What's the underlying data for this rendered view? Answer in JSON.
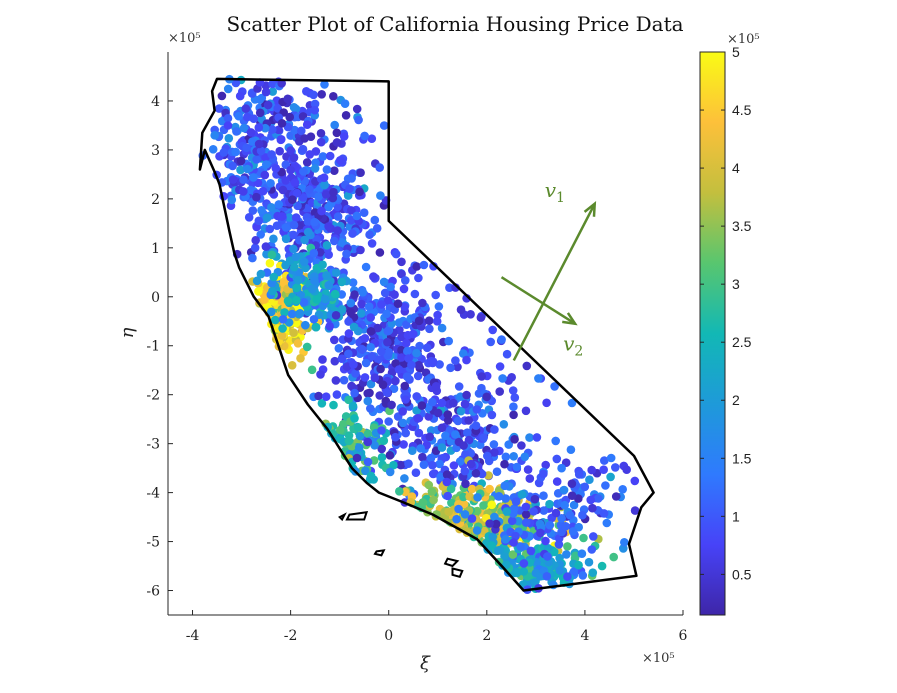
{
  "chart_data": {
    "type": "scatter",
    "title": "Scatter Plot of California Housing Price Data",
    "xlabel": "ξ",
    "ylabel": "η",
    "x_exponent": "×10⁵",
    "y_exponent": "×10⁵",
    "xlim": [
      -4.5,
      6
    ],
    "ylim": [
      -6.5,
      5
    ],
    "x_ticks": [
      -4,
      -2,
      0,
      2,
      4,
      6
    ],
    "y_ticks": [
      -6,
      -5,
      -4,
      -3,
      -2,
      -1,
      0,
      1,
      2,
      3,
      4
    ],
    "grid": false,
    "colorbar": {
      "colormap": "parula",
      "range": [
        0.15,
        5
      ],
      "ticks": [
        0.5,
        1,
        1.5,
        2,
        2.5,
        3,
        3.5,
        4,
        4.5,
        5
      ],
      "exponent": "×10⁵",
      "colors": [
        "#3e26a8",
        "#4743f8",
        "#2f7afe",
        "#1e9ad9",
        "#12b8b5",
        "#58c66f",
        "#c3bf3e",
        "#fdc03a",
        "#f9fb15"
      ]
    },
    "outline": [
      [
        -3.5,
        4.45
      ],
      [
        0.0,
        4.4
      ],
      [
        0.0,
        1.55
      ],
      [
        5.0,
        -3.25
      ],
      [
        5.4,
        -4.0
      ],
      [
        5.15,
        -4.3
      ],
      [
        4.9,
        -5.05
      ],
      [
        5.05,
        -5.7
      ],
      [
        2.75,
        -6.0
      ],
      [
        2.35,
        -5.55
      ],
      [
        1.8,
        -4.95
      ],
      [
        0.9,
        -4.45
      ],
      [
        0.3,
        -4.2
      ],
      [
        -0.2,
        -4.0
      ],
      [
        -0.45,
        -3.8
      ],
      [
        -0.75,
        -3.5
      ],
      [
        -1.25,
        -2.7
      ],
      [
        -1.65,
        -2.2
      ],
      [
        -2.05,
        -1.6
      ],
      [
        -2.25,
        -1.0
      ],
      [
        -2.45,
        -0.4
      ],
      [
        -2.75,
        0.0
      ],
      [
        -3.05,
        0.6
      ],
      [
        -3.15,
        0.9
      ],
      [
        -3.25,
        1.35
      ],
      [
        -3.45,
        2.3
      ],
      [
        -3.55,
        2.55
      ],
      [
        -3.75,
        3.0
      ],
      [
        -3.85,
        2.6
      ],
      [
        -3.8,
        3.35
      ],
      [
        -3.55,
        3.8
      ],
      [
        -3.6,
        4.2
      ],
      [
        -3.5,
        4.45
      ]
    ],
    "islands": [
      [
        [
          -0.8,
          -4.45
        ],
        [
          -0.45,
          -4.4
        ],
        [
          -0.5,
          -4.55
        ],
        [
          -0.85,
          -4.55
        ]
      ],
      [
        [
          -1.0,
          -4.5
        ],
        [
          -0.9,
          -4.45
        ],
        [
          -0.95,
          -4.55
        ]
      ],
      [
        [
          -0.25,
          -5.2
        ],
        [
          -0.1,
          -5.18
        ],
        [
          -0.15,
          -5.28
        ],
        [
          -0.28,
          -5.25
        ]
      ],
      [
        [
          1.2,
          -5.35
        ],
        [
          1.4,
          -5.4
        ],
        [
          1.3,
          -5.5
        ],
        [
          1.15,
          -5.45
        ]
      ],
      [
        [
          1.3,
          -5.55
        ],
        [
          1.5,
          -5.6
        ],
        [
          1.45,
          -5.72
        ],
        [
          1.3,
          -5.68
        ]
      ]
    ],
    "clusters": [
      {
        "x": -1.5,
        "y": 1.5,
        "sx": 0.6,
        "sy": 0.7,
        "n": 320,
        "v": 1.0
      },
      {
        "x": -0.2,
        "y": -1.0,
        "sx": 0.55,
        "sy": 0.8,
        "n": 300,
        "v": 0.9
      },
      {
        "x": 1.3,
        "y": -3.0,
        "sx": 0.7,
        "sy": 0.6,
        "n": 200,
        "v": 1.0
      },
      {
        "x": -2.3,
        "y": -0.4,
        "sx": 0.3,
        "sy": 0.4,
        "n": 160,
        "v": 4.4
      },
      {
        "x": -1.6,
        "y": 0.2,
        "sx": 0.5,
        "sy": 0.5,
        "n": 150,
        "v": 2.0
      },
      {
        "x": -2.8,
        "y": 3.0,
        "sx": 0.5,
        "sy": 0.9,
        "n": 160,
        "v": 1.1
      },
      {
        "x": 1.3,
        "y": -4.6,
        "sx": 0.9,
        "sy": 0.35,
        "n": 260,
        "v": 3.6
      },
      {
        "x": 2.8,
        "y": -5.5,
        "sx": 0.6,
        "sy": 0.3,
        "n": 170,
        "v": 2.2
      },
      {
        "x": 3.2,
        "y": -4.3,
        "sx": 0.9,
        "sy": 0.6,
        "n": 170,
        "v": 1.1
      },
      {
        "x": -0.9,
        "y": -3.2,
        "sx": 0.45,
        "sy": 0.4,
        "n": 80,
        "v": 2.6
      },
      {
        "x": -2.0,
        "y": 3.2,
        "sx": 0.8,
        "sy": 0.8,
        "n": 150,
        "v": 0.9
      },
      {
        "x": 0.9,
        "y": -1.8,
        "sx": 1.2,
        "sy": 1.3,
        "n": 150,
        "v": 0.8
      }
    ],
    "vectors": [
      {
        "label": "v",
        "sub": "1",
        "from": [
          2.55,
          -1.3
        ],
        "to": [
          4.2,
          1.9
        ],
        "color": "#5b8a2d"
      },
      {
        "label": "v",
        "sub": "2",
        "from": [
          2.3,
          0.4
        ],
        "to": [
          3.8,
          -0.55
        ],
        "color": "#5b8a2d"
      }
    ]
  }
}
